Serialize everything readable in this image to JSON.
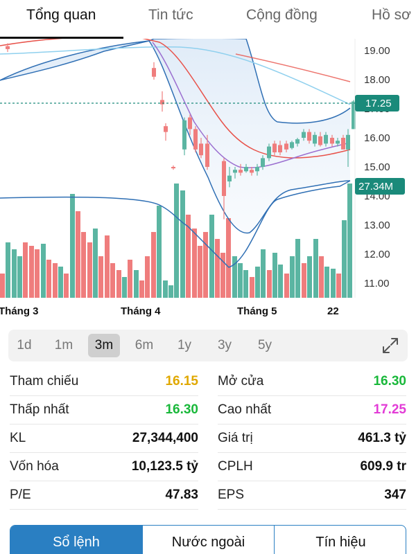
{
  "tabs": [
    {
      "label": "Tổng quan",
      "active": true
    },
    {
      "label": "Tin tức",
      "active": false
    },
    {
      "label": "Cộng đồng",
      "active": false
    },
    {
      "label": "Hồ sơ",
      "active": false
    }
  ],
  "chart_data": {
    "type": "candlestick",
    "y_ticks": [
      "19.00",
      "18.00",
      "17.00",
      "16.00",
      "15.00",
      "14.00",
      "13.00",
      "12.00",
      "11.00"
    ],
    "x_ticks": [
      "Tháng 3",
      "Tháng 4",
      "Tháng 5",
      "22"
    ],
    "price_badge": "17.25",
    "volume_badge": "27.34M",
    "ylim": [
      10.6,
      19.4
    ],
    "colors": {
      "up": "#5bb5a2",
      "down": "#ef7d7d",
      "ma_red": "#e8524a",
      "ma_purple": "#9b6fd0",
      "ma_light": "#8fd0ee",
      "band": "#2f6fb4"
    }
  },
  "periods": [
    "1d",
    "1m",
    "3m",
    "6m",
    "1y",
    "3y",
    "5y"
  ],
  "active_period": "3m",
  "stats": [
    {
      "left": {
        "label": "Tham chiếu",
        "value": "16.15",
        "color": "yellow"
      },
      "right": {
        "label": "Mở cửa",
        "value": "16.30",
        "color": "green"
      }
    },
    {
      "left": {
        "label": "Thấp nhất",
        "value": "16.30",
        "color": "green"
      },
      "right": {
        "label": "Cao nhất",
        "value": "17.25",
        "color": "magenta"
      }
    },
    {
      "left": {
        "label": "KL",
        "value": "27,344,400",
        "color": ""
      },
      "right": {
        "label": "Giá trị",
        "value": "461.3 tỷ",
        "color": ""
      }
    },
    {
      "left": {
        "label": "Vốn hóa",
        "value": "10,123.5 tỷ",
        "color": ""
      },
      "right": {
        "label": "CPLH",
        "value": "609.9 tr",
        "color": ""
      }
    },
    {
      "left": {
        "label": "P/E",
        "value": "47.83",
        "color": ""
      },
      "right": {
        "label": "EPS",
        "value": "347",
        "color": ""
      }
    }
  ],
  "bottom_tabs": [
    {
      "label": "Sổ lệnh",
      "active": true
    },
    {
      "label": "Nước ngoài",
      "active": false
    },
    {
      "label": "Tín hiệu",
      "active": false
    }
  ]
}
